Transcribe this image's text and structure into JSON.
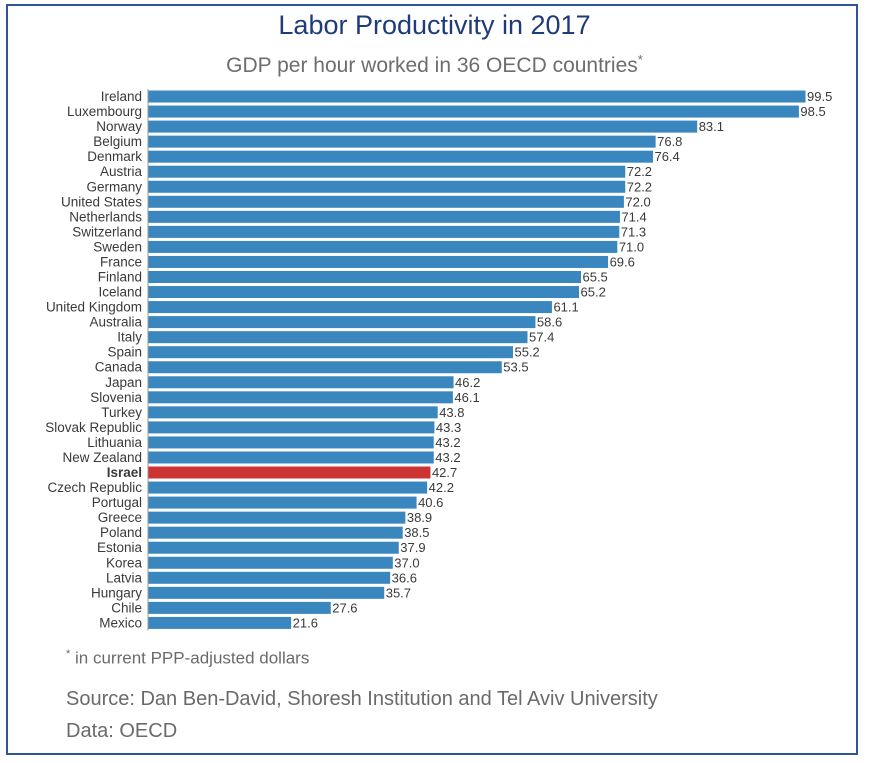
{
  "title": "Labor Productivity in 2017",
  "subtitle": "GDP per hour worked in 36 OECD countries",
  "subtitle_marker": "*",
  "footnote_marker": "*",
  "footnote": " in current PPP-adjusted dollars",
  "source": "Source: Dan Ben-David, Shoresh Institution and Tel Aviv University",
  "data_credit": "Data: OECD",
  "colors": {
    "bar": "#3a87c0",
    "highlight": "#cc3333",
    "highlight_label": "#cc3333",
    "frame": "#2e5597",
    "title": "#1f3b7a"
  },
  "chart_data": {
    "type": "bar",
    "orientation": "horizontal",
    "title": "Labor Productivity in 2017",
    "subtitle": "GDP per hour worked in 36 OECD countries*",
    "xlim": [
      0,
      100
    ],
    "grid": false,
    "highlight": "Israel",
    "categories": [
      "Ireland",
      "Luxembourg",
      "Norway",
      "Belgium",
      "Denmark",
      "Austria",
      "Germany",
      "United States",
      "Netherlands",
      "Switzerland",
      "Sweden",
      "France",
      "Finland",
      "Iceland",
      "United Kingdom",
      "Australia",
      "Italy",
      "Spain",
      "Canada",
      "Japan",
      "Slovenia",
      "Turkey",
      "Slovak Republic",
      "Lithuania",
      "New Zealand",
      "Israel",
      "Czech Republic",
      "Portugal",
      "Greece",
      "Poland",
      "Estonia",
      "Korea",
      "Latvia",
      "Hungary",
      "Chile",
      "Mexico"
    ],
    "values": [
      99.5,
      98.5,
      83.1,
      76.8,
      76.4,
      72.2,
      72.2,
      72.0,
      71.4,
      71.3,
      71.0,
      69.6,
      65.5,
      65.2,
      61.1,
      58.6,
      57.4,
      55.2,
      53.5,
      46.2,
      46.1,
      43.8,
      43.3,
      43.2,
      43.2,
      42.7,
      42.2,
      40.6,
      38.9,
      38.5,
      37.9,
      37.0,
      36.6,
      35.7,
      27.6,
      21.6
    ],
    "value_labels": [
      "99.5",
      "98.5",
      "83.1",
      "76.8",
      "76.4",
      "72.2",
      "72.2",
      "72.0",
      "71.4",
      "71.3",
      "71.0",
      "69.6",
      "65.5",
      "65.2",
      "61.1",
      "58.6",
      "57.4",
      "55.2",
      "53.5",
      "46.2",
      "46.1",
      "43.8",
      "43.3",
      "43.2",
      "43.2",
      "42.7",
      "42.2",
      "40.6",
      "38.9",
      "38.5",
      "37.9",
      "37.0",
      "36.6",
      "35.7",
      "27.6",
      "21.6"
    ]
  }
}
